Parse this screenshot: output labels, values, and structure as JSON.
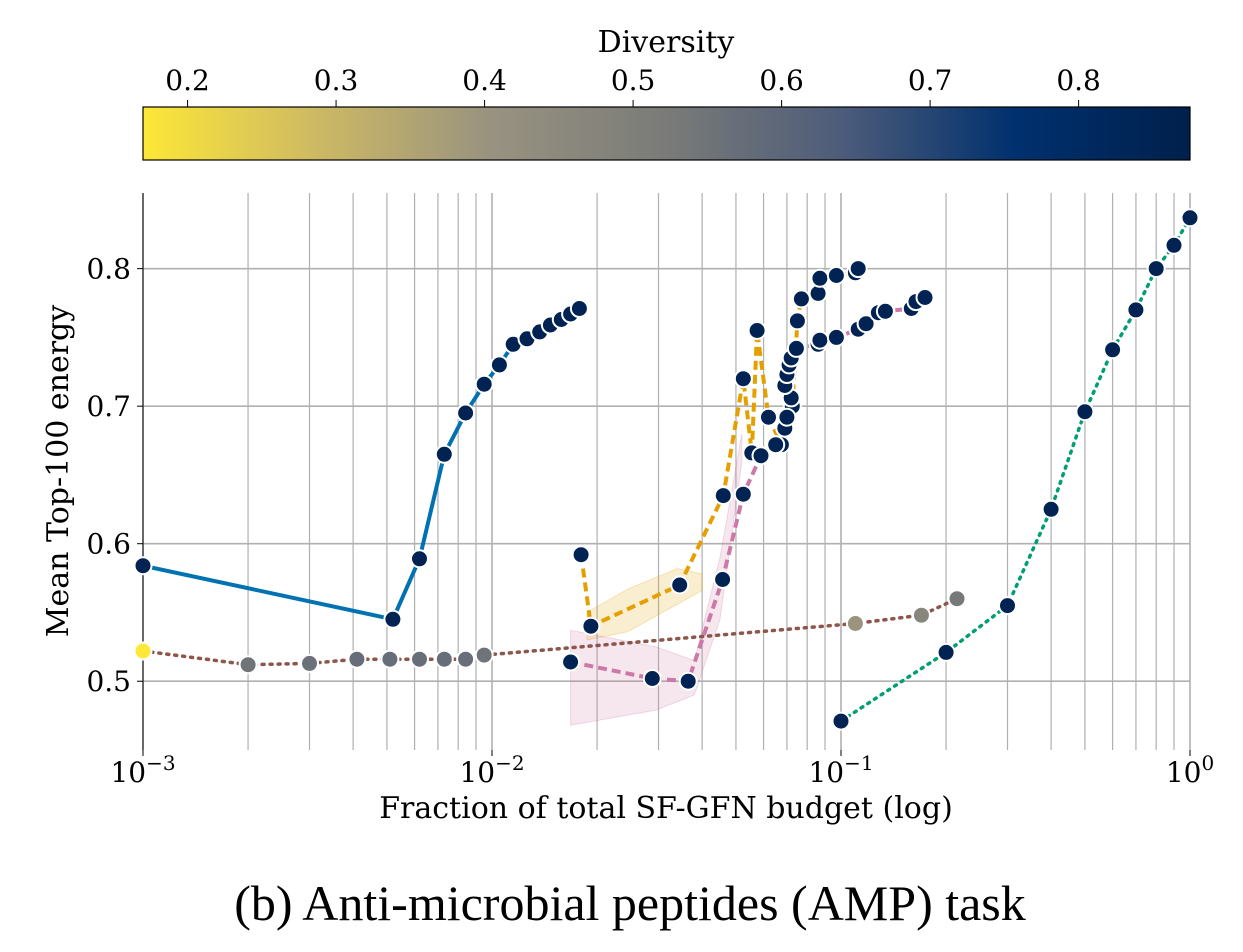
{
  "caption": "(b) Anti-microbial peptides (AMP) task",
  "chart_data": {
    "type": "line",
    "xscale": "log",
    "xlim": [
      0.001,
      1.0
    ],
    "ylim": [
      0.45,
      0.855
    ],
    "xlabel": "Fraction of total SF-GFN budget (log)",
    "ylabel": "Mean Top-100 energy",
    "grid": true,
    "x_ticks": [
      {
        "value": 0.001,
        "base": "10",
        "exp": "−3"
      },
      {
        "value": 0.01,
        "base": "10",
        "exp": "−2"
      },
      {
        "value": 0.1,
        "base": "10",
        "exp": "−1"
      },
      {
        "value": 1.0,
        "base": "10",
        "exp": "0"
      }
    ],
    "y_ticks": [
      {
        "value": 0.5,
        "label": "0.5"
      },
      {
        "value": 0.6,
        "label": "0.6"
      },
      {
        "value": 0.7,
        "label": "0.7"
      },
      {
        "value": 0.8,
        "label": "0.8"
      }
    ],
    "colorbar": {
      "label": "Diversity",
      "range": [
        0.17,
        0.875
      ],
      "ticks": [
        {
          "value": 0.2,
          "label": "0.2"
        },
        {
          "value": 0.3,
          "label": "0.3"
        },
        {
          "value": 0.4,
          "label": "0.4"
        },
        {
          "value": 0.5,
          "label": "0.5"
        },
        {
          "value": 0.6,
          "label": "0.6"
        },
        {
          "value": 0.7,
          "label": "0.7"
        },
        {
          "value": 0.8,
          "label": "0.8"
        }
      ],
      "colormap": "cividis",
      "stops": [
        "#fde737",
        "#cdb964",
        "#989280",
        "#7a7b78",
        "#4d5c7a",
        "#00306e",
        "#00204c"
      ]
    },
    "series": [
      {
        "line_color": "#0072b2",
        "dash": "solid",
        "points": [
          {
            "x": 0.001,
            "y": 0.584,
            "c": 0.85
          },
          {
            "x": 0.0052,
            "y": 0.545,
            "c": 0.85
          },
          {
            "x": 0.0062,
            "y": 0.589,
            "c": 0.85
          },
          {
            "x": 0.0073,
            "y": 0.665,
            "c": 0.85
          },
          {
            "x": 0.0084,
            "y": 0.695,
            "c": 0.85
          },
          {
            "x": 0.0095,
            "y": 0.716,
            "c": 0.85
          },
          {
            "x": 0.0105,
            "y": 0.73,
            "c": 0.85
          },
          {
            "x": 0.0115,
            "y": 0.745,
            "c": 0.85
          },
          {
            "x": 0.0126,
            "y": 0.749,
            "c": 0.85
          },
          {
            "x": 0.0137,
            "y": 0.754,
            "c": 0.85
          },
          {
            "x": 0.0147,
            "y": 0.759,
            "c": 0.85
          },
          {
            "x": 0.0158,
            "y": 0.763,
            "c": 0.85
          },
          {
            "x": 0.0168,
            "y": 0.767,
            "c": 0.85
          },
          {
            "x": 0.0178,
            "y": 0.771,
            "c": 0.85
          }
        ]
      },
      {
        "line_color": "#8c564b",
        "dash": "dotted",
        "points": [
          {
            "x": 0.001,
            "y": 0.522,
            "c": 0.17
          },
          {
            "x": 0.002,
            "y": 0.512,
            "c": 0.55
          },
          {
            "x": 0.003,
            "y": 0.513,
            "c": 0.56
          },
          {
            "x": 0.0041,
            "y": 0.516,
            "c": 0.57
          },
          {
            "x": 0.0051,
            "y": 0.516,
            "c": 0.57
          },
          {
            "x": 0.0062,
            "y": 0.516,
            "c": 0.57
          },
          {
            "x": 0.0073,
            "y": 0.516,
            "c": 0.57
          },
          {
            "x": 0.0084,
            "y": 0.516,
            "c": 0.57
          },
          {
            "x": 0.0095,
            "y": 0.519,
            "c": 0.55
          },
          {
            "x": 0.11,
            "y": 0.542,
            "c": 0.4
          },
          {
            "x": 0.17,
            "y": 0.548,
            "c": 0.47
          },
          {
            "x": 0.215,
            "y": 0.56,
            "c": 0.53
          }
        ]
      },
      {
        "line_color": "#e69f00",
        "dash": "dashed",
        "band": [
          [
            0.0187,
            0.53
          ],
          [
            0.0245,
            0.536
          ],
          [
            0.034,
            0.556
          ],
          [
            0.04,
            0.566
          ],
          [
            0.04,
            0.578
          ],
          [
            0.034,
            0.582
          ],
          [
            0.0245,
            0.567
          ],
          [
            0.0187,
            0.55
          ]
        ],
        "points": [
          {
            "x": 0.018,
            "y": 0.592,
            "c": 0.85
          },
          {
            "x": 0.0192,
            "y": 0.54,
            "c": 0.85
          },
          {
            "x": 0.0345,
            "y": 0.57,
            "c": 0.85
          },
          {
            "x": 0.046,
            "y": 0.635,
            "c": 0.85
          },
          {
            "x": 0.0525,
            "y": 0.72,
            "c": 0.85
          },
          {
            "x": 0.0555,
            "y": 0.666,
            "c": 0.85
          },
          {
            "x": 0.0575,
            "y": 0.755,
            "c": 0.85
          },
          {
            "x": 0.062,
            "y": 0.692,
            "c": 0.85
          },
          {
            "x": 0.0675,
            "y": 0.672,
            "c": 0.85
          },
          {
            "x": 0.0725,
            "y": 0.7,
            "c": 0.85
          },
          {
            "x": 0.075,
            "y": 0.762,
            "c": 0.85
          },
          {
            "x": 0.077,
            "y": 0.778,
            "c": 0.85
          },
          {
            "x": 0.086,
            "y": 0.782,
            "c": 0.85
          },
          {
            "x": 0.087,
            "y": 0.793,
            "c": 0.85
          },
          {
            "x": 0.097,
            "y": 0.795,
            "c": 0.85
          },
          {
            "x": 0.11,
            "y": 0.797,
            "c": 0.85
          },
          {
            "x": 0.112,
            "y": 0.8,
            "c": 0.85
          }
        ]
      },
      {
        "line_color": "#cc79a7",
        "dash": "dashed",
        "band": [
          [
            0.0168,
            0.468
          ],
          [
            0.0295,
            0.479
          ],
          [
            0.038,
            0.49
          ],
          [
            0.045,
            0.545
          ],
          [
            0.052,
            0.66
          ],
          [
            0.052,
            0.68
          ],
          [
            0.045,
            0.59
          ],
          [
            0.038,
            0.515
          ],
          [
            0.0295,
            0.525
          ],
          [
            0.0168,
            0.537
          ]
        ],
        "points": [
          {
            "x": 0.0168,
            "y": 0.514,
            "c": 0.85
          },
          {
            "x": 0.0288,
            "y": 0.502,
            "c": 0.85
          },
          {
            "x": 0.0365,
            "y": 0.5,
            "c": 0.85
          },
          {
            "x": 0.0458,
            "y": 0.574,
            "c": 0.85
          },
          {
            "x": 0.0525,
            "y": 0.636,
            "c": 0.85
          },
          {
            "x": 0.059,
            "y": 0.664,
            "c": 0.85
          },
          {
            "x": 0.065,
            "y": 0.672,
            "c": 0.85
          },
          {
            "x": 0.069,
            "y": 0.684,
            "c": 0.85
          },
          {
            "x": 0.07,
            "y": 0.692,
            "c": 0.85
          },
          {
            "x": 0.072,
            "y": 0.706,
            "c": 0.85
          },
          {
            "x": 0.069,
            "y": 0.715,
            "c": 0.85
          },
          {
            "x": 0.07,
            "y": 0.723,
            "c": 0.85
          },
          {
            "x": 0.071,
            "y": 0.73,
            "c": 0.85
          },
          {
            "x": 0.072,
            "y": 0.735,
            "c": 0.85
          },
          {
            "x": 0.0745,
            "y": 0.742,
            "c": 0.85
          },
          {
            "x": 0.086,
            "y": 0.745,
            "c": 0.85
          },
          {
            "x": 0.087,
            "y": 0.748,
            "c": 0.85
          },
          {
            "x": 0.097,
            "y": 0.75,
            "c": 0.85
          },
          {
            "x": 0.112,
            "y": 0.756,
            "c": 0.85
          },
          {
            "x": 0.118,
            "y": 0.76,
            "c": 0.85
          },
          {
            "x": 0.128,
            "y": 0.768,
            "c": 0.85
          },
          {
            "x": 0.134,
            "y": 0.769,
            "c": 0.85
          },
          {
            "x": 0.159,
            "y": 0.771,
            "c": 0.85
          },
          {
            "x": 0.164,
            "y": 0.776,
            "c": 0.85
          },
          {
            "x": 0.174,
            "y": 0.779,
            "c": 0.85
          }
        ]
      },
      {
        "line_color": "#009e73",
        "dash": "dotted",
        "points": [
          {
            "x": 0.1,
            "y": 0.471,
            "c": 0.85
          },
          {
            "x": 0.2,
            "y": 0.521,
            "c": 0.85
          },
          {
            "x": 0.3,
            "y": 0.555,
            "c": 0.85
          },
          {
            "x": 0.4,
            "y": 0.625,
            "c": 0.85
          },
          {
            "x": 0.5,
            "y": 0.696,
            "c": 0.85
          },
          {
            "x": 0.6,
            "y": 0.741,
            "c": 0.85
          },
          {
            "x": 0.7,
            "y": 0.77,
            "c": 0.85
          },
          {
            "x": 0.8,
            "y": 0.8,
            "c": 0.85
          },
          {
            "x": 0.9,
            "y": 0.817,
            "c": 0.85
          },
          {
            "x": 1.0,
            "y": 0.837,
            "c": 0.85
          }
        ]
      }
    ]
  }
}
